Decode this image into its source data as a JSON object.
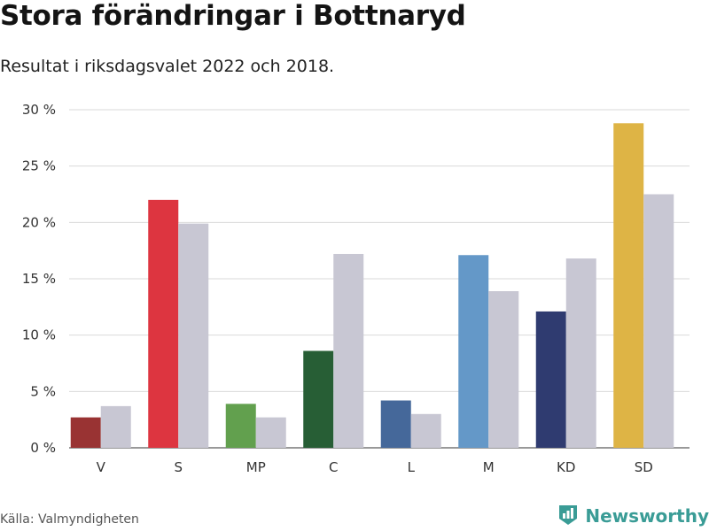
{
  "header": {
    "title": "Stora förändringar i Bottnaryd",
    "subtitle": "Resultat i riksdagsvalet 2022 och 2018."
  },
  "footer": {
    "source": "Källa: Valmyndigheten",
    "brand": "Newsworthy",
    "brand_color": "#3a9c96",
    "brand_icon": "bar-chart-logo-icon"
  },
  "chart_data": {
    "type": "bar",
    "title": "Stora förändringar i Bottnaryd",
    "subtitle": "Resultat i riksdagsvalet 2022 och 2018.",
    "xlabel": "",
    "ylabel": "",
    "ylim": [
      0,
      30
    ],
    "yticks": [
      0,
      5,
      10,
      15,
      20,
      25,
      30
    ],
    "ytick_labels": [
      "0 %",
      "5 %",
      "10 %",
      "15 %",
      "20 %",
      "25 %",
      "30 %"
    ],
    "grid": true,
    "legend": "none",
    "categories": [
      "V",
      "S",
      "MP",
      "C",
      "L",
      "M",
      "KD",
      "SD"
    ],
    "series": [
      {
        "name": "2022",
        "values": [
          2.7,
          22.0,
          3.9,
          8.6,
          4.2,
          17.1,
          12.1,
          28.8
        ],
        "colors": [
          "#993333",
          "#dd3540",
          "#62a04e",
          "#275e35",
          "#45689a",
          "#6498c8",
          "#2f3b70",
          "#deb445"
        ]
      },
      {
        "name": "2018",
        "values": [
          3.7,
          19.9,
          2.7,
          17.2,
          3.0,
          13.9,
          16.8,
          22.5
        ],
        "color": "#c8c7d3"
      }
    ]
  }
}
